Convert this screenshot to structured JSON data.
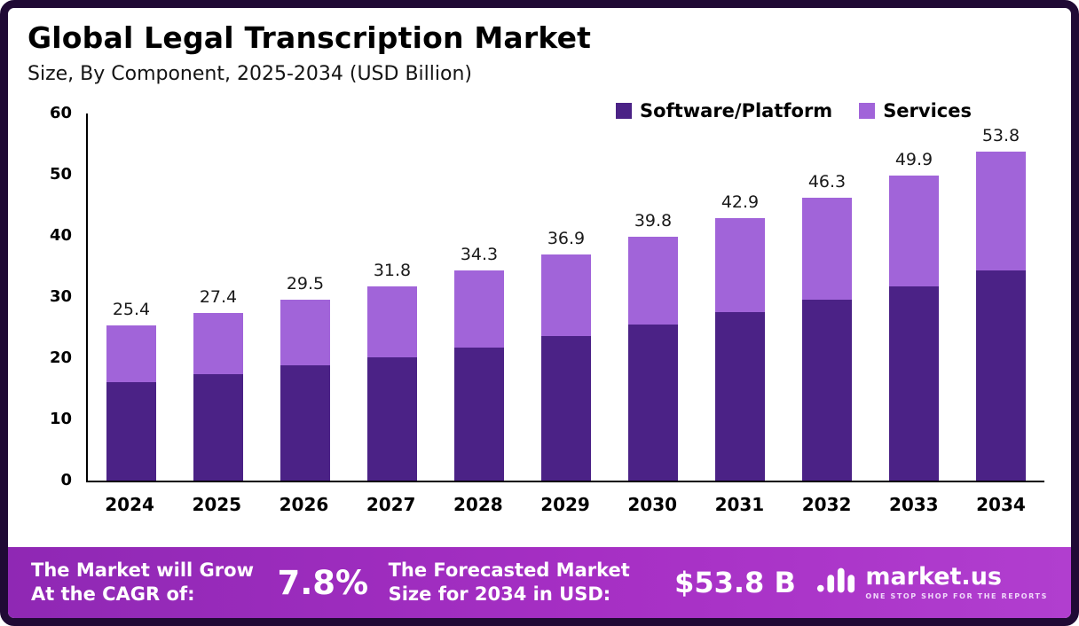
{
  "chart_data": {
    "type": "bar",
    "stacked": true,
    "title": "Global Legal Transcription Market",
    "subtitle": "Size, By Component, 2025-2034 (USD Billion)",
    "categories": [
      "2024",
      "2025",
      "2026",
      "2027",
      "2028",
      "2029",
      "2030",
      "2031",
      "2032",
      "2033",
      "2034"
    ],
    "series": [
      {
        "name": "Software/Platform",
        "color": "#4B2286",
        "values": [
          16.1,
          17.4,
          18.8,
          20.2,
          21.8,
          23.6,
          25.5,
          27.5,
          29.5,
          31.8,
          34.4
        ]
      },
      {
        "name": "Services",
        "color": "#A164D9",
        "values": [
          9.3,
          10.0,
          10.7,
          11.6,
          12.5,
          13.3,
          14.3,
          15.4,
          16.8,
          18.1,
          19.4
        ]
      }
    ],
    "totals": [
      25.4,
      27.4,
      29.5,
      31.8,
      34.3,
      36.9,
      39.8,
      42.9,
      46.3,
      49.9,
      53.8
    ],
    "xlabel": "",
    "ylabel": "",
    "ylim": [
      0,
      60
    ],
    "yticks": [
      0,
      10,
      20,
      30,
      40,
      50,
      60
    ],
    "grid": false,
    "legend_position": "top-right"
  },
  "footer": {
    "cagr_label": "The Market will Grow At the CAGR of:",
    "cagr_value": "7.8%",
    "forecast_label": "The Forecasted Market Size for 2034 in USD:",
    "forecast_value": "$53.8 B",
    "brand": "market.us",
    "tagline": "ONE STOP SHOP FOR THE REPORTS"
  }
}
